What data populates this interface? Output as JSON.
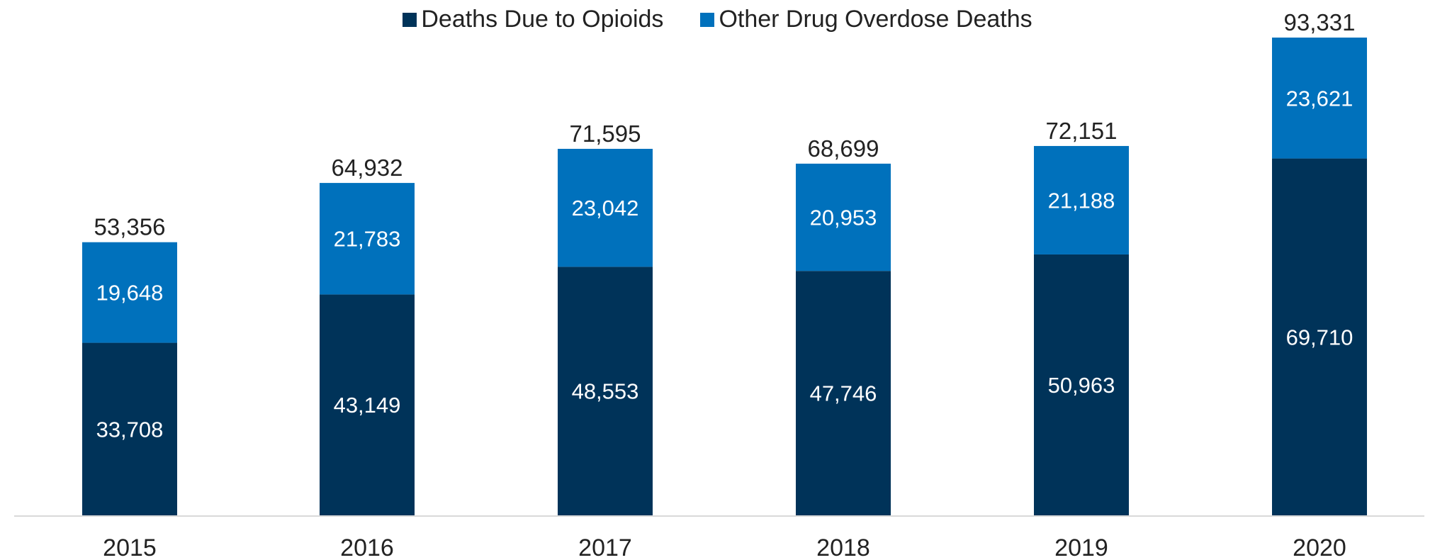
{
  "chart_data": {
    "type": "bar",
    "stacked": true,
    "categories": [
      "2015",
      "2016",
      "2017",
      "2018",
      "2019",
      "2020"
    ],
    "series": [
      {
        "name": "Deaths Due to Opioids",
        "color": "#003359",
        "values": [
          33708,
          43149,
          48553,
          47746,
          50963,
          69710
        ]
      },
      {
        "name": "Other Drug Overdose Deaths",
        "color": "#0071bc",
        "values": [
          19648,
          21783,
          23042,
          20953,
          21188,
          23621
        ]
      }
    ],
    "totals": [
      53356,
      64932,
      71595,
      68699,
      72151,
      93331
    ],
    "value_labels": {
      "series_0": [
        "33,708",
        "43,149",
        "48,553",
        "47,746",
        "50,963",
        "69,710"
      ],
      "series_1": [
        "19,648",
        "21,783",
        "23,042",
        "20,953",
        "21,188",
        "23,621"
      ],
      "totals": [
        "53,356",
        "64,932",
        "71,595",
        "68,699",
        "72,151",
        "93,331"
      ]
    },
    "title": "",
    "xlabel": "",
    "ylabel": "",
    "ylim": [
      0,
      93331
    ],
    "grid": false,
    "legend": "top-center",
    "axis_color": "#d9d9d9"
  }
}
